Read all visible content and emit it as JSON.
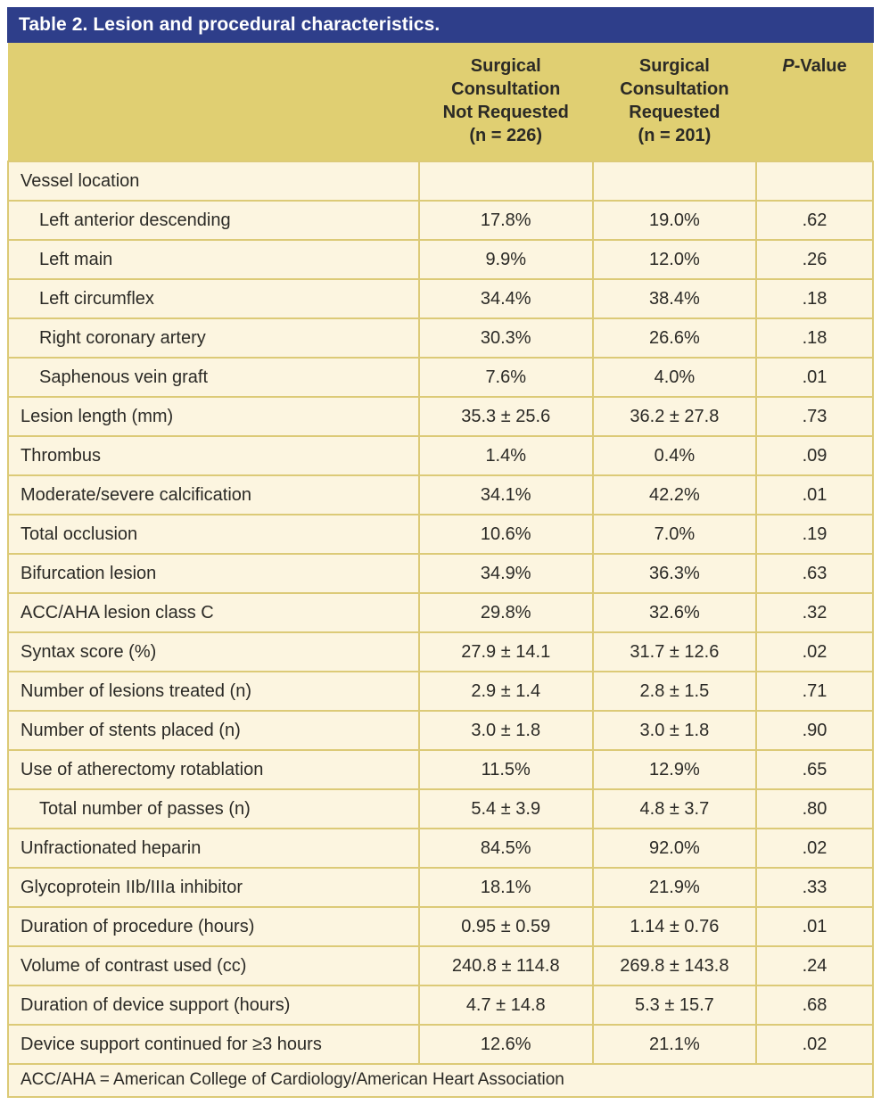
{
  "title": "Table 2. Lesion and procedural characteristics.",
  "header": {
    "label_col": "",
    "group_not_requested": "Surgical\nConsultation\nNot Requested\n(n = 226)",
    "group_requested": "Surgical\nConsultation\nRequested\n(n = 201)",
    "p_italic": "P",
    "p_rest": "-Value"
  },
  "colors": {
    "title_bar": "#2e3e8a",
    "header_bg": "#e0cf72",
    "row_bg": "#fcf5e0",
    "border": "#dcca77",
    "text": "#2b2a26",
    "title_text": "#ffffff"
  },
  "rows": [
    {
      "label": "Vessel location",
      "indent": false,
      "not_requested": "",
      "requested": "",
      "p": ""
    },
    {
      "label": "Left anterior descending",
      "indent": true,
      "not_requested": "17.8%",
      "requested": "19.0%",
      "p": ".62"
    },
    {
      "label": "Left main",
      "indent": true,
      "not_requested": "9.9%",
      "requested": "12.0%",
      "p": ".26"
    },
    {
      "label": "Left circumflex",
      "indent": true,
      "not_requested": "34.4%",
      "requested": "38.4%",
      "p": ".18"
    },
    {
      "label": "Right coronary artery",
      "indent": true,
      "not_requested": "30.3%",
      "requested": "26.6%",
      "p": ".18"
    },
    {
      "label": "Saphenous vein graft",
      "indent": true,
      "not_requested": "7.6%",
      "requested": "4.0%",
      "p": ".01"
    },
    {
      "label": "Lesion length (mm)",
      "indent": false,
      "not_requested": "35.3 ± 25.6",
      "requested": "36.2 ± 27.8",
      "p": ".73"
    },
    {
      "label": "Thrombus",
      "indent": false,
      "not_requested": "1.4%",
      "requested": "0.4%",
      "p": ".09"
    },
    {
      "label": "Moderate/severe calcification",
      "indent": false,
      "not_requested": "34.1%",
      "requested": "42.2%",
      "p": ".01"
    },
    {
      "label": "Total occlusion",
      "indent": false,
      "not_requested": "10.6%",
      "requested": "7.0%",
      "p": ".19"
    },
    {
      "label": "Bifurcation lesion",
      "indent": false,
      "not_requested": "34.9%",
      "requested": "36.3%",
      "p": ".63"
    },
    {
      "label": "ACC/AHA lesion class C",
      "indent": false,
      "not_requested": "29.8%",
      "requested": "32.6%",
      "p": ".32"
    },
    {
      "label": "Syntax score (%)",
      "indent": false,
      "not_requested": "27.9 ± 14.1",
      "requested": "31.7 ± 12.6",
      "p": ".02"
    },
    {
      "label": "Number of lesions treated (n)",
      "indent": false,
      "not_requested": "2.9 ± 1.4",
      "requested": "2.8 ± 1.5",
      "p": ".71"
    },
    {
      "label": "Number of stents placed (n)",
      "indent": false,
      "not_requested": "3.0 ± 1.8",
      "requested": "3.0 ± 1.8",
      "p": ".90"
    },
    {
      "label": "Use of atherectomy rotablation",
      "indent": false,
      "not_requested": "11.5%",
      "requested": "12.9%",
      "p": ".65"
    },
    {
      "label": "Total number of passes (n)",
      "indent": true,
      "not_requested": "5.4 ± 3.9",
      "requested": "4.8 ± 3.7",
      "p": ".80"
    },
    {
      "label": "Unfractionated heparin",
      "indent": false,
      "not_requested": "84.5%",
      "requested": "92.0%",
      "p": ".02"
    },
    {
      "label": "Glycoprotein IIb/IIIa inhibitor",
      "indent": false,
      "not_requested": "18.1%",
      "requested": "21.9%",
      "p": ".33"
    },
    {
      "label": "Duration of procedure (hours)",
      "indent": false,
      "not_requested": "0.95 ± 0.59",
      "requested": "1.14 ± 0.76",
      "p": ".01"
    },
    {
      "label": "Volume of contrast used (cc)",
      "indent": false,
      "not_requested": "240.8 ± 114.8",
      "requested": "269.8 ± 143.8",
      "p": ".24"
    },
    {
      "label": "Duration of device support (hours)",
      "indent": false,
      "not_requested": "4.7 ± 14.8",
      "requested": "5.3 ± 15.7",
      "p": ".68"
    },
    {
      "label": "Device support continued for ≥3 hours",
      "indent": false,
      "not_requested": "12.6%",
      "requested": "21.1%",
      "p": ".02"
    }
  ],
  "footnote": "ACC/AHA = American College of Cardiology/American Heart Association"
}
